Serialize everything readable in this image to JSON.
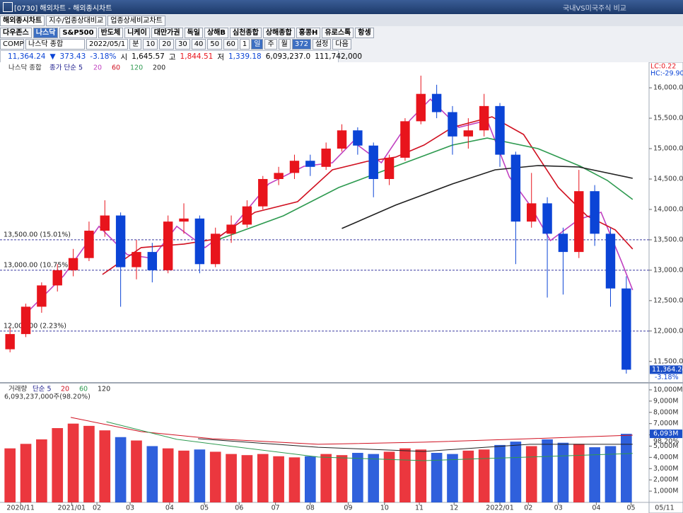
{
  "window": {
    "title": "[0730] 해외차트 - 해외종시차트",
    "link": "국내VS미국주식 비교"
  },
  "tabs": [
    "해외종시차트",
    "지수/업종상대비교",
    "업종상세비교차트"
  ],
  "markets": [
    "다우존스",
    "나스닥",
    "S&P500",
    "반도체",
    "니케이",
    "대만가권",
    "독일",
    "상해B",
    "심천종합",
    "상해종합",
    "홍콩H",
    "유로스톡",
    "항셍"
  ],
  "toolbar": {
    "code": "COMP",
    "name": "나스닥 종합",
    "date": "2022/05/1",
    "period": "분",
    "minutes": [
      "10",
      "20",
      "30",
      "40",
      "50",
      "60"
    ],
    "count": "1",
    "units": [
      "일",
      "주",
      "월"
    ],
    "bars": "372",
    "buttons": [
      "설정",
      "다음"
    ]
  },
  "quote": {
    "price": "11,364.24",
    "arrow": "▼",
    "change": "373.43",
    "rate": "-3.18%",
    "open_label": "시",
    "open": "1,645.57",
    "high_label": "고",
    "high": "1,844.51",
    "low_label": "저",
    "low": "1,339.18",
    "volume": "6,093,237.0",
    "amount": "111,742,000"
  },
  "chart_data": [
    {
      "type": "candlestick",
      "title": "나스닥 종합",
      "ma_label": "종가 단순 5",
      "up_color": "#e8141c",
      "down_color": "#0b44d6",
      "open": [
        11700,
        11950,
        12400,
        12750,
        13000,
        13200,
        13650,
        13900,
        13050,
        13300,
        13000,
        13800,
        13850,
        13100,
        13600,
        13750,
        14050,
        14500,
        14600,
        14800,
        14700,
        15000,
        15300,
        15050,
        14500,
        14850,
        15450,
        15900,
        15600,
        15200,
        15300,
        15700,
        14900,
        13800,
        14100,
        13600,
        13300,
        14300,
        13600,
        12700
      ],
      "high": [
        12050,
        12450,
        12800,
        13100,
        13350,
        13800,
        14150,
        13950,
        13500,
        13450,
        13900,
        14100,
        13900,
        13700,
        13900,
        14150,
        14550,
        14700,
        14900,
        14900,
        15100,
        15400,
        15350,
        15100,
        14900,
        15500,
        16200,
        16050,
        15700,
        15500,
        15900,
        15750,
        14950,
        14600,
        14200,
        13700,
        14650,
        14400,
        13700,
        12900
      ],
      "low": [
        11650,
        11900,
        12300,
        12650,
        12900,
        13150,
        13550,
        12400,
        12850,
        12800,
        12950,
        13600,
        12950,
        13050,
        13450,
        13700,
        14000,
        14400,
        14500,
        14550,
        14650,
        14950,
        14900,
        14200,
        14400,
        14800,
        15400,
        15500,
        14900,
        15000,
        15200,
        14700,
        13100,
        13700,
        12550,
        12600,
        13200,
        13400,
        12400,
        11300
      ],
      "close": [
        11950,
        12400,
        12750,
        13000,
        13200,
        13650,
        13900,
        13050,
        13300,
        13000,
        13800,
        13850,
        13100,
        13600,
        13750,
        14050,
        14500,
        14600,
        14800,
        14700,
        15000,
        15300,
        15050,
        14500,
        14850,
        15450,
        15900,
        15600,
        15200,
        15300,
        15700,
        14900,
        13800,
        14100,
        13600,
        13300,
        14300,
        13600,
        12700,
        11364.24
      ],
      "xlim": [
        -0.5,
        39.5
      ],
      "ylim": [
        11160,
        16420
      ],
      "yticks": [
        {
          "value": 11500,
          "label": "11,500.00"
        },
        {
          "value": 12000,
          "label": "12,000.00"
        },
        {
          "value": 12500,
          "label": "12,500.00"
        },
        {
          "value": 13000,
          "label": "13,000.00"
        },
        {
          "value": 13500,
          "label": "13,500.00"
        },
        {
          "value": 14000,
          "label": "14,000.00"
        },
        {
          "value": 14500,
          "label": "14,500.00"
        },
        {
          "value": 15000,
          "label": "15,000.00"
        },
        {
          "value": 15500,
          "label": "15,500.00"
        },
        {
          "value": 16000,
          "label": "16,000.00"
        }
      ],
      "reference_lines": [
        {
          "value": 13500,
          "label": "13,500.00 (15.01%)"
        },
        {
          "value": 13000,
          "label": "13,000.00 (10.75%)"
        },
        {
          "value": 12000,
          "label": "12,000.00 (2.23%)"
        }
      ],
      "series": [
        {
          "name": "20",
          "color": "#c040c0",
          "x": [
            1.16,
            3.39,
            5.63,
            7.42,
            8.99,
            10.55,
            12.34,
            14.13,
            16.37,
            18.6,
            20.4,
            21.7,
            23.5,
            25.3,
            26.6,
            28.4,
            30.2,
            31.6,
            32.9,
            34.2,
            36.0,
            37.4,
            38.7,
            39.4
          ],
          "values": [
            12326,
            12907,
            13721,
            13256,
            13198,
            13721,
            13372,
            13721,
            14419,
            14709,
            14767,
            15116,
            14767,
            15465,
            15814,
            15349,
            15465,
            14535,
            14070,
            13488,
            13837,
            13953,
            13140,
            12674
          ]
        },
        {
          "name": "60",
          "color": "#d01020",
          "x": [
            5.85,
            8.3,
            11.0,
            13.0,
            15.5,
            18.2,
            20.4,
            22.6,
            24.4,
            26.2,
            28.0,
            30.5,
            32.5,
            34.7,
            36.5,
            38.3,
            39.4
          ],
          "values": [
            12930,
            13372,
            13430,
            13512,
            13953,
            14128,
            14651,
            14791,
            14860,
            15058,
            15349,
            15523,
            15233,
            14360,
            13895,
            13663,
            13349
          ]
        },
        {
          "name": "120",
          "color": "#2e9a50",
          "x": [
            13.0,
            17.3,
            20.8,
            24.4,
            28.0,
            30.2,
            33.4,
            36.1,
            37.8,
            39.4
          ],
          "values": [
            13488,
            13895,
            14360,
            14709,
            15058,
            15174,
            15000,
            14709,
            14477,
            14163
          ]
        },
        {
          "name": "200",
          "color": "#202020",
          "x": [
            21.0,
            24.4,
            28.0,
            30.7,
            33.4,
            36.0,
            39.4
          ],
          "values": [
            13686,
            14070,
            14419,
            14651,
            14721,
            14698,
            14512
          ]
        }
      ],
      "info": [
        "LC:0.22",
        "HC:-29.90"
      ],
      "last": {
        "value": 11364.24,
        "label": "11,364.24",
        "change": "-3.18%"
      }
    },
    {
      "type": "bar",
      "title": "거래량",
      "ma_label": "단순 5",
      "summary": "6,093,237,000주(98.20%)",
      "values": [
        4800,
        5200,
        5600,
        6600,
        7000,
        6800,
        6400,
        5800,
        5500,
        5000,
        4800,
        4600,
        4700,
        4500,
        4300,
        4200,
        4300,
        4100,
        4000,
        4100,
        4300,
        4200,
        4400,
        4300,
        4500,
        4800,
        4700,
        4400,
        4300,
        4600,
        4700,
        5100,
        5400,
        5000,
        5600,
        5300,
        5200,
        4900,
        5000,
        6093
      ],
      "xlim": [
        -0.5,
        39.5
      ],
      "ylim": [
        0,
        10500
      ],
      "yticks": [
        {
          "value": 1000,
          "label": "1,000M"
        },
        {
          "value": 2000,
          "label": "2,000M"
        },
        {
          "value": 3000,
          "label": "3,000M"
        },
        {
          "value": 4000,
          "label": "4,000M"
        },
        {
          "value": 5000,
          "label": "5,000M"
        },
        {
          "value": 6000,
          "label": "6,000M"
        },
        {
          "value": 7000,
          "label": "7,000M"
        },
        {
          "value": 8000,
          "label": "8,000M"
        },
        {
          "value": 9000,
          "label": "9,000M"
        },
        {
          "value": 10000,
          "label": "10,000M"
        }
      ],
      "xticks": [
        {
          "value": 0.67,
          "label": "2020/11"
        },
        {
          "value": 3.9,
          "label": "2021/01"
        },
        {
          "value": 5.5,
          "label": "02"
        },
        {
          "value": 7.6,
          "label": "03"
        },
        {
          "value": 10.1,
          "label": "04"
        },
        {
          "value": 12.3,
          "label": "05"
        },
        {
          "value": 14.5,
          "label": "06"
        },
        {
          "value": 16.8,
          "label": "07"
        },
        {
          "value": 19.0,
          "label": "08"
        },
        {
          "value": 21.4,
          "label": "09"
        },
        {
          "value": 23.7,
          "label": "10"
        },
        {
          "value": 25.9,
          "label": "11"
        },
        {
          "value": 28.1,
          "label": "12"
        },
        {
          "value": 31.0,
          "label": "2022/01"
        },
        {
          "value": 32.8,
          "label": "02"
        },
        {
          "value": 34.7,
          "label": "03"
        },
        {
          "value": 37.1,
          "label": "04"
        },
        {
          "value": 39.3,
          "label": "05"
        }
      ],
      "end_label": "05/11",
      "series": [
        {
          "name": "20",
          "color": "#d01020",
          "x": [
            3.84,
            8.3,
            12.8,
            19.5,
            26.2,
            32.9,
            39.4
          ],
          "values": [
            7550,
            6290,
            5660,
            5160,
            5350,
            5660,
            5970
          ]
        },
        {
          "name": "60",
          "color": "#2e9a50",
          "x": [
            6.1,
            10.55,
            14.1,
            19.5,
            26.2,
            32.9,
            39.4
          ],
          "values": [
            7170,
            5600,
            4970,
            4030,
            3710,
            4030,
            4350
          ]
        },
        {
          "name": "120",
          "color": "#202020",
          "x": [
            11.9,
            19.5,
            26.2,
            32.9,
            39.4
          ],
          "values": [
            5660,
            4900,
            4530,
            5160,
            5160
          ]
        }
      ],
      "last": {
        "value": 6093,
        "label": "6,093M",
        "rate": "98.20%"
      }
    }
  ]
}
